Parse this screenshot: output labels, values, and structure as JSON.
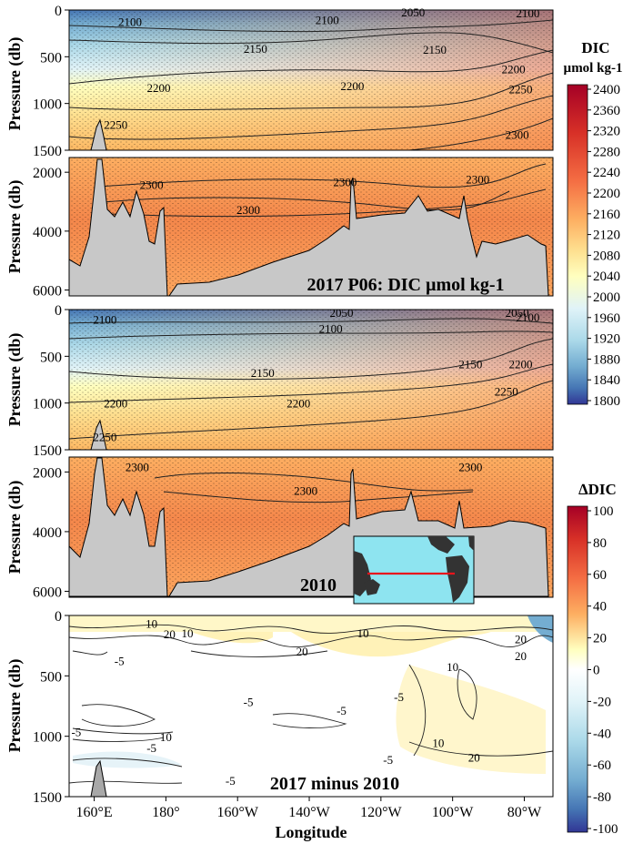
{
  "chart_data": [
    {
      "type": "heatmap",
      "title": "2017 P06: DIC µmol kg-1",
      "ylabel": "Pressure (db)",
      "upper_ylim": [
        0,
        1500
      ],
      "upper_yticks": [
        0,
        500,
        1000,
        1500
      ],
      "lower_ylim": [
        1500,
        6200
      ],
      "lower_yticks": [
        2000,
        4000,
        6000
      ],
      "xlim": [
        153,
        288
      ],
      "contour_labels": [
        {
          "label": "2050",
          "lon": 249,
          "p": 30
        },
        {
          "label": "2100",
          "lon": 281,
          "p": 40
        },
        {
          "label": "2100",
          "lon": 170,
          "p": 130
        },
        {
          "label": "2100",
          "lon": 225,
          "p": 110
        },
        {
          "label": "2150",
          "lon": 205,
          "p": 420
        },
        {
          "label": "2150",
          "lon": 255,
          "p": 430
        },
        {
          "label": "2200",
          "lon": 178,
          "p": 840
        },
        {
          "label": "2200",
          "lon": 232,
          "p": 820
        },
        {
          "label": "2200",
          "lon": 277,
          "p": 640
        },
        {
          "label": "2250",
          "lon": 166,
          "p": 1230
        },
        {
          "label": "2250",
          "lon": 279,
          "p": 850
        },
        {
          "label": "2300",
          "lon": 278,
          "p": 1340
        },
        {
          "label": "2300",
          "lon": 176,
          "p": 2450
        },
        {
          "label": "2300",
          "lon": 230,
          "p": 2350
        },
        {
          "label": "2300",
          "lon": 267,
          "p": 2250
        },
        {
          "label": "2300",
          "lon": 203,
          "p": 3300
        }
      ]
    },
    {
      "type": "heatmap",
      "title": "2010",
      "ylabel": "Pressure (db)",
      "upper_ylim": [
        0,
        1500
      ],
      "upper_yticks": [
        0,
        500,
        1000,
        1500
      ],
      "lower_ylim": [
        1500,
        6200
      ],
      "lower_yticks": [
        2000,
        4000,
        6000
      ],
      "xlim": [
        153,
        288
      ],
      "contour_labels": [
        {
          "label": "2050",
          "lon": 229,
          "p": 40
        },
        {
          "label": "2050",
          "lon": 278,
          "p": 40
        },
        {
          "label": "2100",
          "lon": 163,
          "p": 110
        },
        {
          "label": "2100",
          "lon": 226,
          "p": 210
        },
        {
          "label": "2100",
          "lon": 281,
          "p": 90
        },
        {
          "label": "2150",
          "lon": 207,
          "p": 680
        },
        {
          "label": "2150",
          "lon": 265,
          "p": 590
        },
        {
          "label": "2200",
          "lon": 166,
          "p": 1010
        },
        {
          "label": "2200",
          "lon": 217,
          "p": 1010
        },
        {
          "label": "2200",
          "lon": 279,
          "p": 590
        },
        {
          "label": "2250",
          "lon": 163,
          "p": 1370
        },
        {
          "label": "2250",
          "lon": 275,
          "p": 880
        },
        {
          "label": "2300",
          "lon": 172,
          "p": 1850
        },
        {
          "label": "2300",
          "lon": 219,
          "p": 2650
        },
        {
          "label": "2300",
          "lon": 265,
          "p": 1850
        }
      ],
      "inset_map": {
        "section_line": "red"
      }
    },
    {
      "type": "heatmap",
      "title": "2017 minus 2010",
      "ylabel": "Pressure (db)",
      "xlabel": "Longitude",
      "ylim": [
        0,
        1500
      ],
      "yticks": [
        0,
        500,
        1000,
        1500
      ],
      "xlim": [
        153,
        288
      ],
      "xticks": [
        "160°E",
        "180°",
        "160°W",
        "140°W",
        "120°W",
        "100°W",
        "80°W"
      ],
      "xtick_values": [
        160,
        180,
        200,
        220,
        240,
        260,
        280
      ],
      "contour_labels": [
        {
          "label": "10",
          "lon": 176,
          "p": 70
        },
        {
          "label": "10",
          "lon": 186,
          "p": 150
        },
        {
          "label": "10",
          "lon": 235,
          "p": 150
        },
        {
          "label": "10",
          "lon": 260,
          "p": 430
        },
        {
          "label": "10",
          "lon": 180,
          "p": 1010
        },
        {
          "label": "10",
          "lon": 256,
          "p": 1060
        },
        {
          "label": "20",
          "lon": 181,
          "p": 160
        },
        {
          "label": "20",
          "lon": 218,
          "p": 300
        },
        {
          "label": "20",
          "lon": 279,
          "p": 200
        },
        {
          "label": "20",
          "lon": 279,
          "p": 340
        },
        {
          "label": "20",
          "lon": 266,
          "p": 1180
        },
        {
          "label": "-5",
          "lon": 167,
          "p": 380
        },
        {
          "label": "-5",
          "lon": 203,
          "p": 720
        },
        {
          "label": "-5",
          "lon": 245,
          "p": 680
        },
        {
          "label": "-5",
          "lon": 229,
          "p": 790
        },
        {
          "label": "-5",
          "lon": 155,
          "p": 970
        },
        {
          "label": "-5",
          "lon": 176,
          "p": 1100
        },
        {
          "label": "-5",
          "lon": 198,
          "p": 1370
        },
        {
          "label": "-5",
          "lon": 242,
          "p": 1200
        }
      ]
    }
  ],
  "colorbars": [
    {
      "title": "DIC",
      "unit": "µmol kg-1",
      "min": 1800,
      "max": 2400,
      "ticks": [
        "2400",
        "2360",
        "2320",
        "2280",
        "2240",
        "2200",
        "2160",
        "2120",
        "2080",
        "2040",
        "2000",
        "1960",
        "1920",
        "1880",
        "1840",
        "1800"
      ]
    },
    {
      "title": "∆DIC",
      "min": -100,
      "max": 100,
      "ticks": [
        "100",
        "80",
        "60",
        "40",
        "20",
        "0",
        "-20",
        "-40",
        "-60",
        "-80",
        "-100"
      ]
    }
  ],
  "colors": {
    "deep_blue": "#313695",
    "blue": "#4575b4",
    "light_blue": "#abd9e9",
    "pale_yellow": "#ffffbf",
    "orange": "#fdae61",
    "red_orange": "#f46d43",
    "dark_red": "#a50026",
    "bathymetry": "#c8c8c8",
    "ocean_map": "#8ee4f0",
    "section_line": "#e8141c"
  }
}
